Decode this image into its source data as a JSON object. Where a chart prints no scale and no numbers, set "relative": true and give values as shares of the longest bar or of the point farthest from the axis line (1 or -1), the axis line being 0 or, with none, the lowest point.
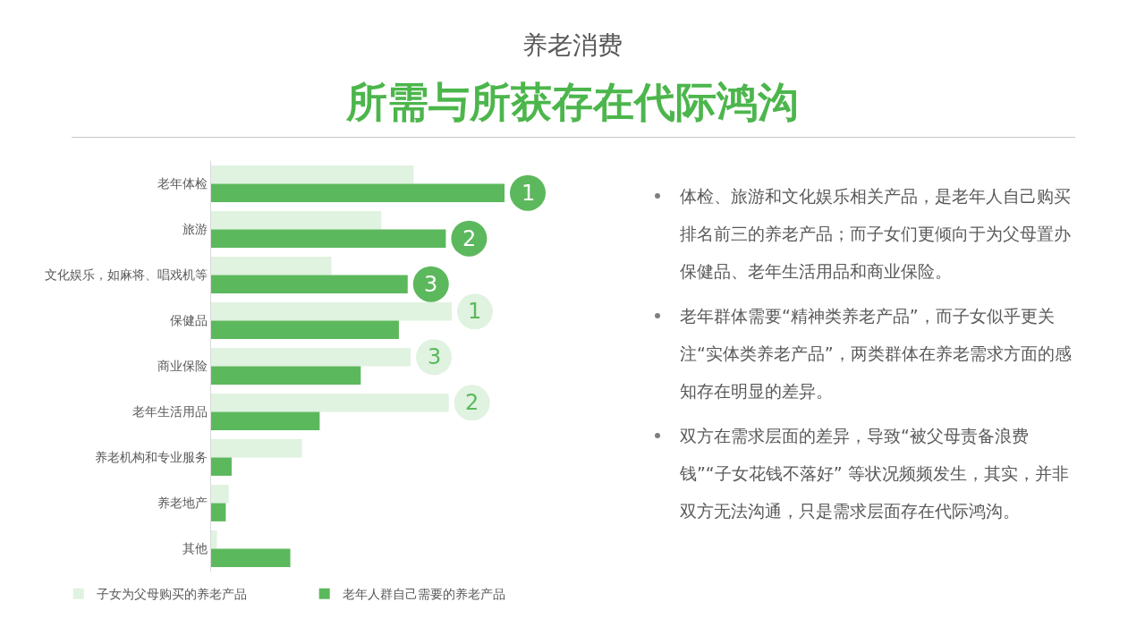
{
  "chart_data": {
    "type": "bar",
    "orientation": "horizontal",
    "relative": true,
    "subtitle": "养老消费",
    "title": "所需与所获存在代际鸿沟",
    "categories": [
      "老年体检",
      "旅游",
      "文化娱乐，如麻将、唱戏机等",
      "保健品",
      "商业保险",
      "老年生活用品",
      "养老机构和专业服务",
      "养老地产",
      "其他"
    ],
    "series": [
      {
        "name": "子女为父母购买的养老产品",
        "color": "#e0f2e0",
        "values": [
          0.69,
          0.58,
          0.41,
          0.82,
          0.68,
          0.81,
          0.31,
          0.06,
          0.02
        ]
      },
      {
        "name": "老年人群自己需要的养老产品",
        "color": "#5cb85c",
        "values": [
          1.0,
          0.8,
          0.67,
          0.64,
          0.51,
          0.37,
          0.07,
          0.05,
          0.27
        ]
      }
    ],
    "legend": "bottom",
    "annotations": [
      {
        "text": "1",
        "x": 1.0,
        "y": "老年体检"
      },
      {
        "text": "2",
        "x": 0.8,
        "y": "旅游"
      },
      {
        "text": "3",
        "x": 0.67,
        "y": "文化娱乐，如麻将、唱戏机等"
      },
      {
        "text": "1",
        "x": 0.82,
        "y": "保健品"
      },
      {
        "text": "3",
        "x": 0.68,
        "y": "商业保险"
      },
      {
        "text": "2",
        "x": 0.81,
        "y": "老年生活用品"
      },
      "体检、旅游和文化娱乐相关产品，是老年人自己购买排名前三的养老产品；而子女们更倾向于为父母置办保健品、老年生活用品和商业保险。",
      "老年群体需要“精神类养老产品”，而子女似乎更关注“实体类养老产品”，两类群体在养老需求方面的感知存在明显的差异。",
      "双方在需求层面的差异，导致“被父母责备浪费钱”“子女花钱不落好” 等状况频频发生，其实，并非双方无法沟通，只是需求层面存在代际鸿沟。"
    ]
  }
}
